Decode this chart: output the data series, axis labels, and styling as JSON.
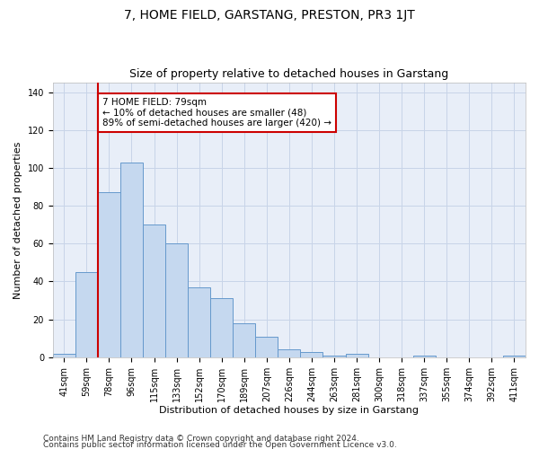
{
  "title": "7, HOME FIELD, GARSTANG, PRESTON, PR3 1JT",
  "subtitle": "Size of property relative to detached houses in Garstang",
  "xlabel": "Distribution of detached houses by size in Garstang",
  "ylabel": "Number of detached properties",
  "bar_labels": [
    "41sqm",
    "59sqm",
    "78sqm",
    "96sqm",
    "115sqm",
    "133sqm",
    "152sqm",
    "170sqm",
    "189sqm",
    "207sqm",
    "226sqm",
    "244sqm",
    "263sqm",
    "281sqm",
    "300sqm",
    "318sqm",
    "337sqm",
    "355sqm",
    "374sqm",
    "392sqm",
    "411sqm"
  ],
  "bar_values": [
    2,
    45,
    87,
    103,
    70,
    60,
    37,
    31,
    18,
    11,
    4,
    3,
    1,
    2,
    0,
    0,
    1,
    0,
    0,
    0,
    1
  ],
  "bar_color": "#c5d8ef",
  "bar_edge_color": "#6699cc",
  "vline_color": "#cc0000",
  "annotation_text": "7 HOME FIELD: 79sqm\n← 10% of detached houses are smaller (48)\n89% of semi-detached houses are larger (420) →",
  "annotation_box_color": "white",
  "annotation_box_edge": "#cc0000",
  "ylim": [
    0,
    145
  ],
  "yticks": [
    0,
    20,
    40,
    60,
    80,
    100,
    120,
    140
  ],
  "grid_color": "#c8d4e8",
  "bg_color": "#e8eef8",
  "footer1": "Contains HM Land Registry data © Crown copyright and database right 2024.",
  "footer2": "Contains public sector information licensed under the Open Government Licence v3.0.",
  "title_fontsize": 10,
  "subtitle_fontsize": 9,
  "label_fontsize": 8,
  "tick_fontsize": 7,
  "annot_fontsize": 7.5,
  "footer_fontsize": 6.5
}
